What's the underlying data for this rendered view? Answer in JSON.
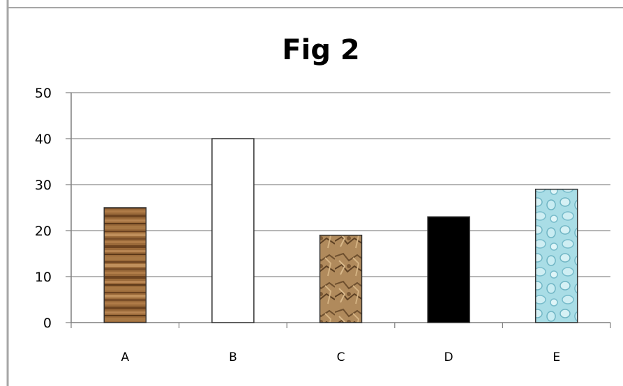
{
  "chart_data": {
    "type": "bar",
    "title": "Fig 2",
    "xlabel": "",
    "ylabel": "",
    "categories": [
      "A",
      "B",
      "C",
      "D",
      "E"
    ],
    "values": [
      25,
      40,
      19,
      23,
      29
    ],
    "ylim": [
      0,
      50
    ],
    "yticks": [
      "0",
      "10",
      "20",
      "30",
      "40",
      "50"
    ],
    "grid": true,
    "legend": "none",
    "bar_fills": [
      "wood-grain-texture",
      "white",
      "rock-texture",
      "black",
      "water-droplet-texture"
    ],
    "colors": {
      "wood": "#8a5a2e",
      "white": "#ffffff",
      "rock": "#a07a4f",
      "black": "#000000",
      "water": "#a9dde6",
      "gridline": "#8c8c8c",
      "frame": "#a6a6a6"
    }
  }
}
